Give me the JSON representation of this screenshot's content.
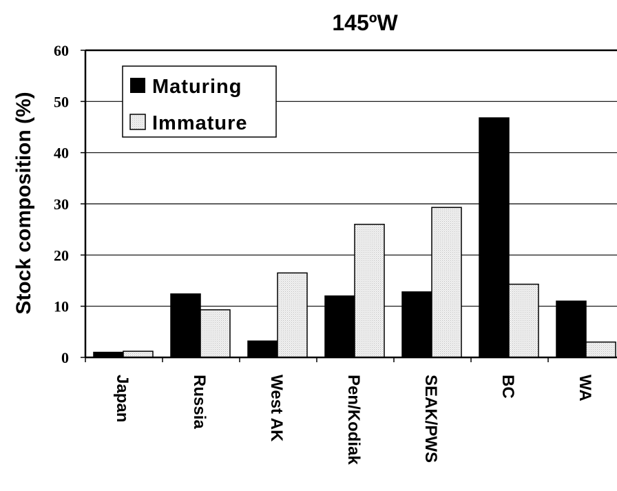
{
  "chart_data": {
    "type": "bar",
    "title": "145ºW",
    "ylabel": "Stock composition (%)",
    "xlabel": "",
    "categories": [
      "Japan",
      "Russia",
      "West AK",
      "Pen/Kodiak",
      "SEAK/PWS",
      "BC",
      "WA"
    ],
    "series": [
      {
        "name": "Maturing",
        "values": [
          1.0,
          12.4,
          3.2,
          12.0,
          12.8,
          46.8,
          11.0
        ],
        "color": "#000000"
      },
      {
        "name": "Immature",
        "values": [
          1.2,
          9.3,
          16.5,
          26.0,
          29.3,
          14.3,
          3.0
        ],
        "color": "#e6e6e6"
      }
    ],
    "ylim": [
      0,
      60
    ],
    "yticks": [
      0,
      10,
      20,
      30,
      40,
      50,
      60
    ],
    "grid": true,
    "legend": "top-left"
  }
}
